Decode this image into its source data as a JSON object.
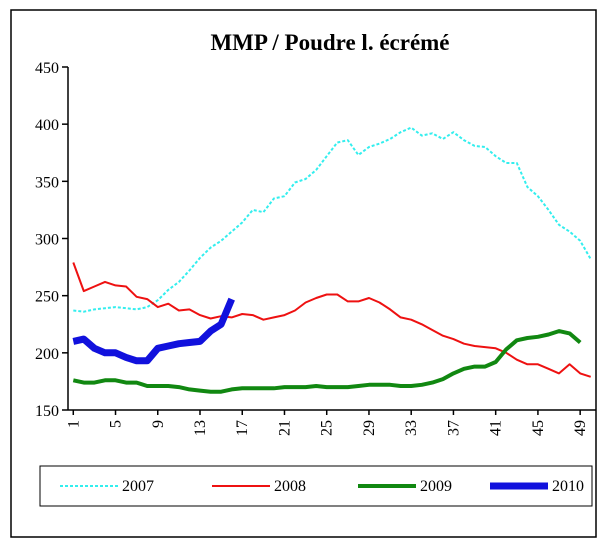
{
  "chart_data": {
    "type": "line",
    "title": "MMP / Poudre l. écrémé",
    "categories": [
      "1",
      null,
      null,
      null,
      "5",
      null,
      null,
      null,
      "9",
      null,
      null,
      null,
      "13",
      null,
      null,
      null,
      "17",
      null,
      null,
      null,
      "21",
      null,
      null,
      null,
      "25",
      null,
      null,
      null,
      "29",
      null,
      null,
      null,
      "33",
      null,
      null,
      null,
      "37",
      null,
      null,
      null,
      "41",
      null,
      null,
      null,
      "45",
      null,
      null,
      null,
      "49",
      null
    ],
    "ylim": [
      150,
      450
    ],
    "yticks": [
      150,
      200,
      250,
      300,
      350,
      400,
      450
    ],
    "grid": false,
    "legend": "bottom",
    "series": [
      {
        "name": "2007",
        "color": "#33eeee",
        "width": 2,
        "dashed": true,
        "values": [
          237,
          236,
          238,
          239,
          240,
          239,
          238,
          240,
          246,
          255,
          262,
          272,
          283,
          292,
          298,
          306,
          314,
          325,
          323,
          335,
          337,
          349,
          352,
          360,
          372,
          384,
          386,
          373,
          380,
          383,
          387,
          393,
          397,
          390,
          392,
          387,
          393,
          386,
          381,
          380,
          372,
          366,
          366,
          345,
          337,
          325,
          312,
          306,
          298,
          282
        ]
      },
      {
        "name": "2008",
        "color": "#ee1111",
        "width": 2,
        "dashed": false,
        "values": [
          279,
          254,
          258,
          262,
          259,
          258,
          249,
          247,
          240,
          243,
          237,
          238,
          233,
          230,
          232,
          231,
          234,
          233,
          229,
          231,
          233,
          237,
          244,
          248,
          251,
          251,
          245,
          245,
          248,
          244,
          238,
          231,
          229,
          225,
          220,
          215,
          212,
          208,
          206,
          205,
          204,
          200,
          194,
          190,
          190,
          186,
          182,
          190,
          182,
          179
        ]
      },
      {
        "name": "2009",
        "color": "#118811",
        "width": 4,
        "dashed": false,
        "values": [
          176,
          174,
          174,
          176,
          176,
          174,
          174,
          171,
          171,
          171,
          170,
          168,
          167,
          166,
          166,
          168,
          169,
          169,
          169,
          169,
          170,
          170,
          170,
          171,
          170,
          170,
          170,
          171,
          172,
          172,
          172,
          171,
          171,
          172,
          174,
          177,
          182,
          186,
          188,
          188,
          192,
          203,
          211,
          213,
          214,
          216,
          219,
          217,
          209,
          null
        ]
      },
      {
        "name": "2010",
        "color": "#1111dd",
        "width": 7,
        "dashed": false,
        "values": [
          210,
          212,
          204,
          200,
          200,
          196,
          193,
          193,
          204,
          206,
          208,
          209,
          210,
          219,
          225,
          247,
          null,
          null,
          null,
          null,
          null,
          null,
          null,
          null,
          null,
          null,
          null,
          null,
          null,
          null,
          null,
          null,
          null,
          null,
          null,
          null,
          null,
          null,
          null,
          null,
          null,
          null,
          null,
          null,
          null,
          null,
          null,
          null,
          null,
          null
        ]
      }
    ]
  }
}
